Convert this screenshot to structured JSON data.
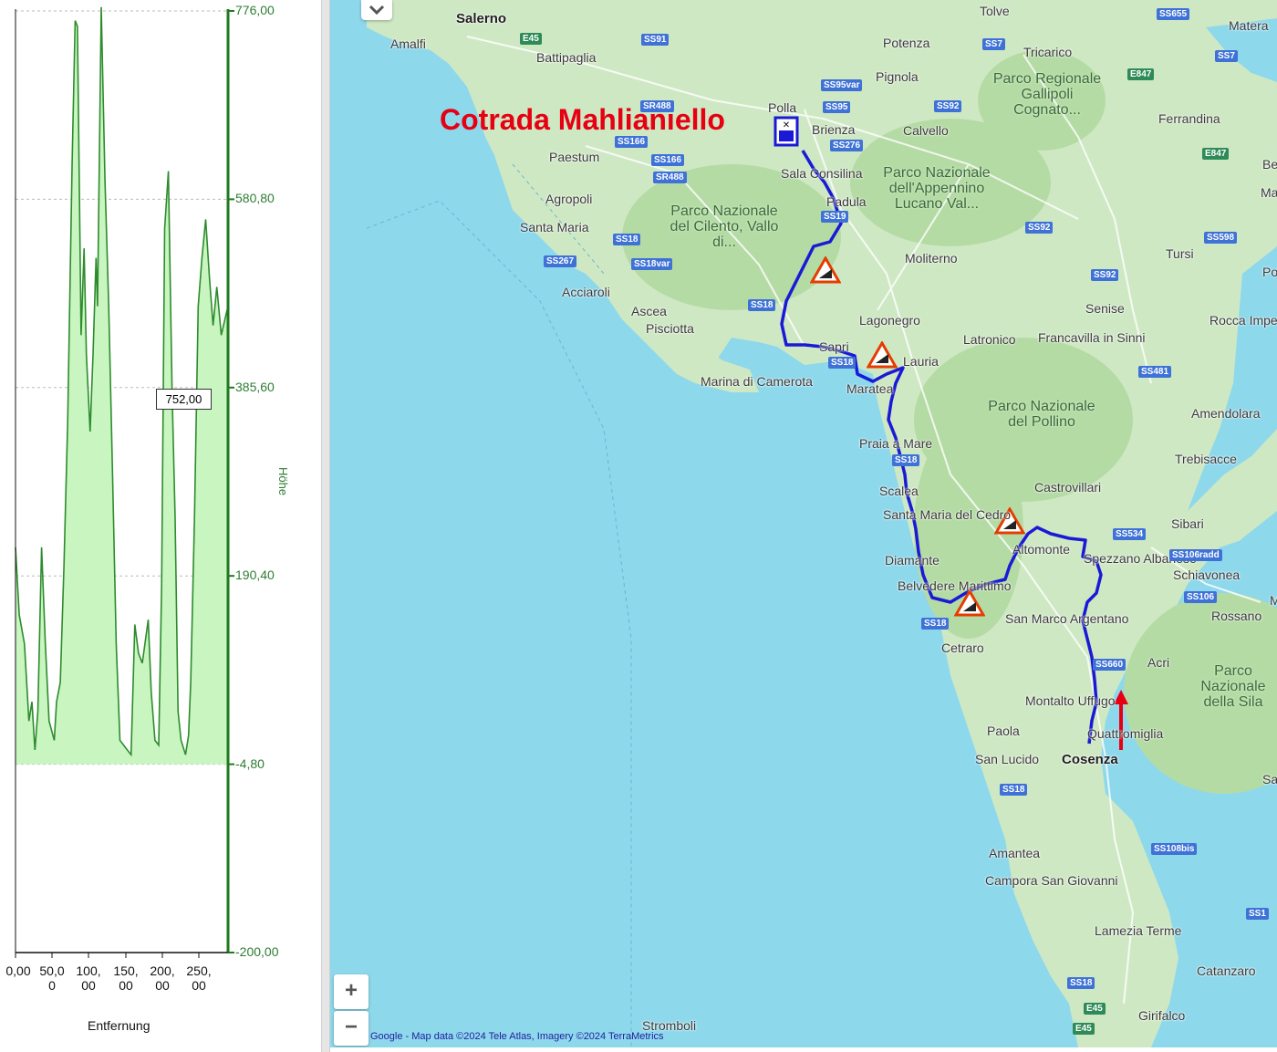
{
  "profile": {
    "y_axis_title": "Höhe",
    "x_axis_title": "Entfernung",
    "y_ticks": [
      "776,00",
      "580,80",
      "385,60",
      "190,40",
      "-4,80",
      "-200,00"
    ],
    "x_ticks": [
      {
        "line1": "0,00",
        "line2": ""
      },
      {
        "line1": "50,0",
        "line2": "0"
      },
      {
        "line1": "100,",
        "line2": "00"
      },
      {
        "line1": "150,",
        "line2": "00"
      },
      {
        "line1": "200,",
        "line2": "00"
      },
      {
        "line1": "250,",
        "line2": "00"
      }
    ],
    "tooltip_value": "752,00",
    "colors": {
      "line": "#2e8b2e",
      "fill": "#c8f5c0",
      "axis": "#1f7a1f"
    }
  },
  "chart_data": {
    "type": "area",
    "xlabel": "Entfernung",
    "ylabel": "Höhe",
    "xlim": [
      0,
      285
    ],
    "ylim": [
      -200,
      776
    ],
    "x": [
      0,
      5,
      12,
      18,
      22,
      26,
      30,
      35,
      40,
      45,
      52,
      55,
      60,
      65,
      70,
      76,
      80,
      83,
      88,
      92,
      95,
      100,
      104,
      108,
      110,
      115,
      120,
      125,
      130,
      135,
      140,
      150,
      155,
      160,
      165,
      170,
      178,
      182,
      187,
      192,
      196,
      200,
      205,
      210,
      214,
      218,
      222,
      228,
      232,
      235,
      240,
      245,
      250,
      255,
      260,
      265,
      270,
      276,
      282,
      285
    ],
    "y": [
      220,
      150,
      120,
      40,
      60,
      10,
      50,
      220,
      120,
      40,
      20,
      60,
      80,
      200,
      350,
      620,
      766,
      760,
      440,
      530,
      420,
      340,
      420,
      520,
      470,
      780,
      600,
      470,
      300,
      120,
      20,
      10,
      5,
      140,
      110,
      100,
      145,
      70,
      20,
      15,
      180,
      550,
      610,
      380,
      250,
      50,
      20,
      5,
      25,
      80,
      250,
      470,
      520,
      560,
      500,
      450,
      490,
      440,
      460,
      470
    ]
  },
  "map": {
    "title": "Cotrada Mahlianiello",
    "attribution": "Google - Map data ©2024 Tele Atlas, Imagery ©2024 TerraMetrics",
    "zoom_in": "+",
    "zoom_out": "−",
    "icons": {
      "collapse": "chevron-down-icon",
      "start": "start-marker-icon",
      "warning": "steep-slope-warning-icon",
      "arrow": "direction-arrow-icon"
    },
    "colors": {
      "route": "#1a1ad6",
      "title": "#e60012",
      "water": "#8ed8ec",
      "land": "#cfe8c4"
    },
    "places": [
      "Salerno",
      "Amalfi",
      "Battipaglia",
      "Potenza",
      "Tolve",
      "Tricarico",
      "Matera",
      "Pignola",
      "Polla",
      "Brienza",
      "Calvello",
      "Ferrandina",
      "Paestum",
      "Sala Consilina",
      "Padula",
      "Agropoli",
      "Santa Maria",
      "Acciaroli",
      "Ascea",
      "Pisciotta",
      "Moliterno",
      "Tursi",
      "Senise",
      "Lagonegro",
      "Latronico",
      "Francavilla in Sinni",
      "Rocca Imperiale",
      "Sapri",
      "Lauria",
      "Maratea",
      "Marina di Camerota",
      "Amendolara",
      "Praia a Mare",
      "Trebisacce",
      "Scalea",
      "Castrovillari",
      "Santa Maria del Cedro",
      "Sibari",
      "Diamante",
      "Altomonte",
      "Spezzano Albanese",
      "Schiavonea",
      "Belvedere Marittimo",
      "San Marco Argentano",
      "Rossano",
      "Cetraro",
      "Acri",
      "Montalto Uffugo",
      "Paola",
      "Quattromiglia",
      "San Lucido",
      "Cosenza",
      "Amantea",
      "Campora San Giovanni",
      "Lamezia Terme",
      "Catanzaro",
      "Girifalco",
      "Stromboli",
      "Berna",
      "Marco",
      "Polico",
      "San Gi in Fi",
      "M"
    ],
    "parks": [
      "Parco Regionale Gallipoli Cognato...",
      "Parco Nazionale dell'Appennino Lucano Val...",
      "Parco Nazionale del Cilento, Vallo di...",
      "Parco Nazionale del Pollino",
      "Parco Nazionale della Sila"
    ],
    "roads": [
      "SS655",
      "E45",
      "SS91",
      "SS7",
      "E847",
      "SS7",
      "SS95var",
      "SS95",
      "SR488",
      "SS92",
      "SS166",
      "SS276",
      "SS166",
      "E847",
      "SR488",
      "SS19",
      "SS92",
      "SS598",
      "SS18",
      "SS267",
      "SS18var",
      "SS92",
      "SS18",
      "SS18",
      "SS481",
      "SS18",
      "SS534",
      "SS106radd",
      "SS106",
      "SS18",
      "SS660",
      "SS18",
      "SS108bis",
      "SS18",
      "E45",
      "E45",
      "SS1"
    ]
  }
}
